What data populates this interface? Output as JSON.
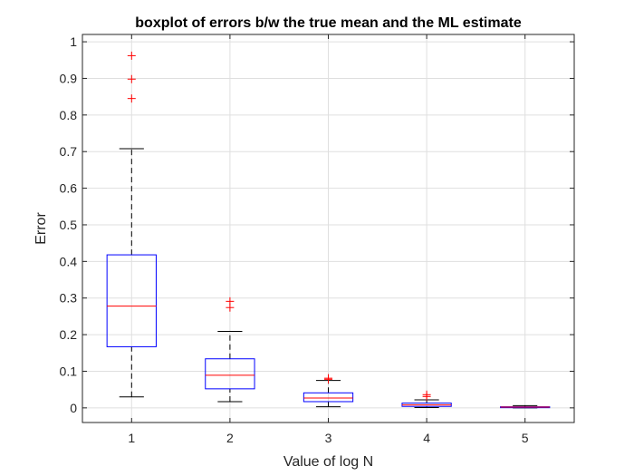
{
  "chart_data": {
    "type": "boxplot",
    "title": "boxplot of errors b/w the true mean and the ML estimate",
    "xlabel": "Value of log N",
    "ylabel": "Error",
    "categories": [
      "1",
      "2",
      "3",
      "4",
      "5"
    ],
    "xlim": [
      0.5,
      5.5
    ],
    "ylim": [
      -0.04,
      1.02
    ],
    "yticks": [
      0,
      0.1,
      0.2,
      0.3,
      0.4,
      0.5,
      0.6,
      0.7,
      0.8,
      0.9,
      1
    ],
    "ytick_labels": [
      "0",
      "0.1",
      "0.2",
      "0.3",
      "0.4",
      "0.5",
      "0.6",
      "0.7",
      "0.8",
      "0.9",
      "1"
    ],
    "grid": true,
    "boxes": [
      {
        "x": 1,
        "whisker_low": 0.03,
        "q1": 0.167,
        "median": 0.278,
        "q3": 0.418,
        "whisker_high": 0.708,
        "outliers": [
          0.845,
          0.898,
          0.962
        ]
      },
      {
        "x": 2,
        "whisker_low": 0.017,
        "q1": 0.052,
        "median": 0.089,
        "q3": 0.134,
        "whisker_high": 0.209,
        "outliers": [
          0.274,
          0.291
        ]
      },
      {
        "x": 3,
        "whisker_low": 0.003,
        "q1": 0.017,
        "median": 0.027,
        "q3": 0.041,
        "whisker_high": 0.075,
        "outliers": [
          0.078,
          0.081
        ]
      },
      {
        "x": 4,
        "whisker_low": 0.001,
        "q1": 0.004,
        "median": 0.008,
        "q3": 0.013,
        "whisker_high": 0.022,
        "outliers": [
          0.031,
          0.036
        ]
      },
      {
        "x": 5,
        "whisker_low": 0.0,
        "q1": 0.0005,
        "median": 0.002,
        "q3": 0.003,
        "whisker_high": 0.006,
        "outliers": []
      }
    ],
    "colors": {
      "box": "#0000ff",
      "median": "#ff0000",
      "whisker": "#000000",
      "outlier": "#ff0000",
      "grid": "#dfdfdf",
      "axis": "#262626"
    }
  }
}
